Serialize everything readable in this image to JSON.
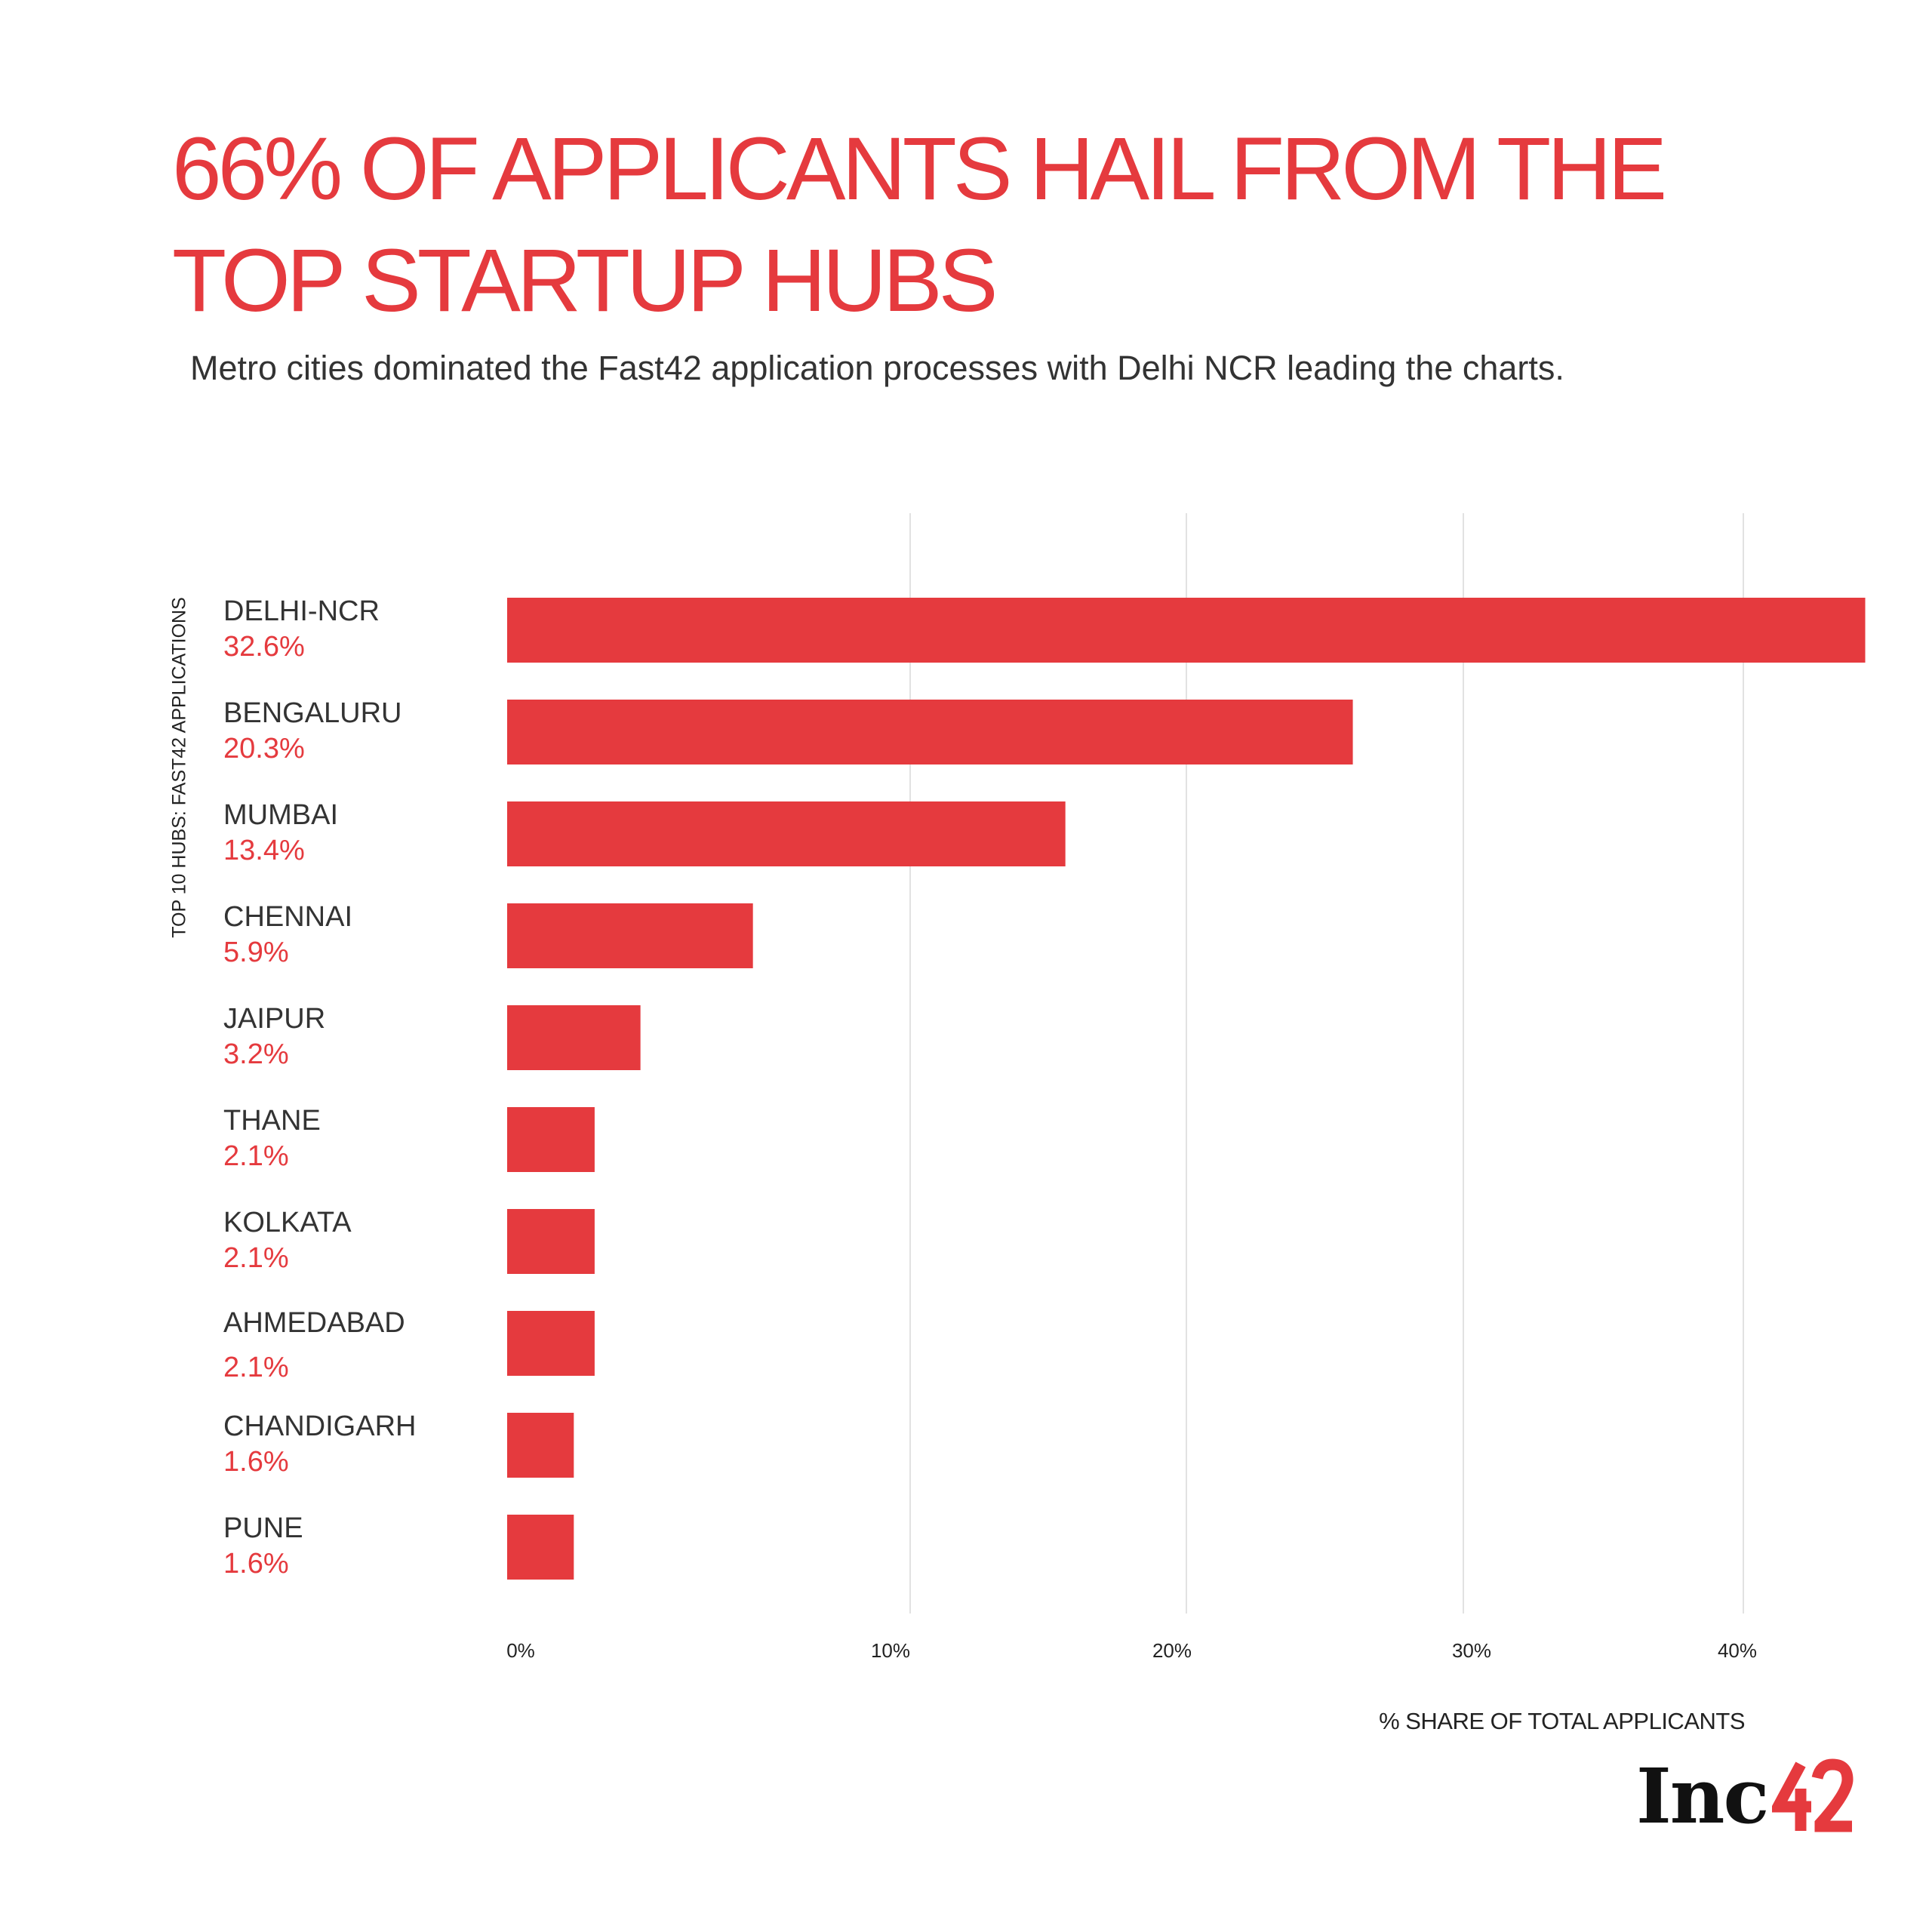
{
  "title": "66% OF APPLICANTS HAIL FROM THE TOP STARTUP HUBS",
  "subtitle": "Metro cities dominated the Fast42 application processes with Delhi NCR leading the charts.",
  "logo": {
    "text": "Inc",
    "number": "42"
  },
  "colors": {
    "accent": "#e53a3e",
    "text": "#333333",
    "grid": "#e2e2e2"
  },
  "chart_data": {
    "type": "bar",
    "orientation": "horizontal",
    "ylabel": "TOP 10 HUBS: FAST42 APPLICATIONS",
    "xlabel": "% SHARE OF TOTAL APPLICANTS",
    "xlim": [
      0,
      40
    ],
    "xticks": [
      "0%",
      "10%",
      "20%",
      "30%",
      "40%"
    ],
    "grid": true,
    "categories": [
      "DELHI-NCR",
      "BENGALURU",
      "MUMBAI",
      "CHENNAI",
      "JAIPUR",
      "THANE",
      "KOLKATA",
      "AHMEDABAD",
      "CHANDIGARH",
      "PUNE"
    ],
    "value_labels": [
      "32.6%",
      "20.3%",
      "13.4%",
      "5.9%",
      "3.2%",
      "2.1%",
      "2.1%",
      "2.1%",
      "1.6%",
      "1.6%"
    ],
    "values": [
      32.6,
      20.3,
      13.4,
      5.9,
      3.2,
      2.1,
      2.1,
      2.1,
      1.6,
      1.6
    ]
  }
}
